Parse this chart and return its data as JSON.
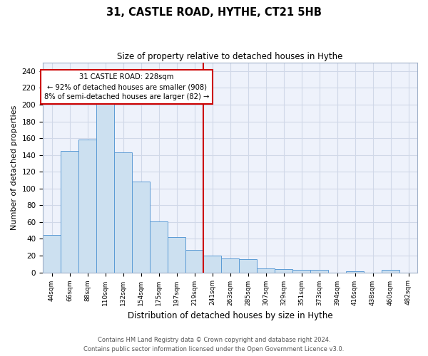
{
  "title": "31, CASTLE ROAD, HYTHE, CT21 5HB",
  "subtitle": "Size of property relative to detached houses in Hythe",
  "xlabel": "Distribution of detached houses by size in Hythe",
  "ylabel": "Number of detached properties",
  "bar_labels": [
    "44sqm",
    "66sqm",
    "88sqm",
    "110sqm",
    "132sqm",
    "154sqm",
    "175sqm",
    "197sqm",
    "219sqm",
    "241sqm",
    "263sqm",
    "285sqm",
    "307sqm",
    "329sqm",
    "351sqm",
    "373sqm",
    "394sqm",
    "416sqm",
    "438sqm",
    "460sqm",
    "482sqm"
  ],
  "bar_values": [
    45,
    145,
    158,
    201,
    143,
    108,
    61,
    42,
    27,
    20,
    17,
    16,
    5,
    4,
    3,
    3,
    0,
    1,
    0,
    3,
    0
  ],
  "bar_color": "#cce0f0",
  "bar_edge_color": "#5b9bd5",
  "property_line_x": 8.5,
  "property_sqm": 228,
  "annotation_line1": "31 CASTLE ROAD: 228sqm",
  "annotation_line2": "← 92% of detached houses are smaller (908)",
  "annotation_line3": "8% of semi-detached houses are larger (82) →",
  "annotation_box_color": "#ffffff",
  "annotation_box_edge": "#cc0000",
  "vline_color": "#cc0000",
  "grid_color": "#d0d8e8",
  "background_color": "#eef2fb",
  "footer_line1": "Contains HM Land Registry data © Crown copyright and database right 2024.",
  "footer_line2": "Contains public sector information licensed under the Open Government Licence v3.0.",
  "ylim": [
    0,
    250
  ],
  "yticks": [
    0,
    20,
    40,
    60,
    80,
    100,
    120,
    140,
    160,
    180,
    200,
    220,
    240
  ]
}
